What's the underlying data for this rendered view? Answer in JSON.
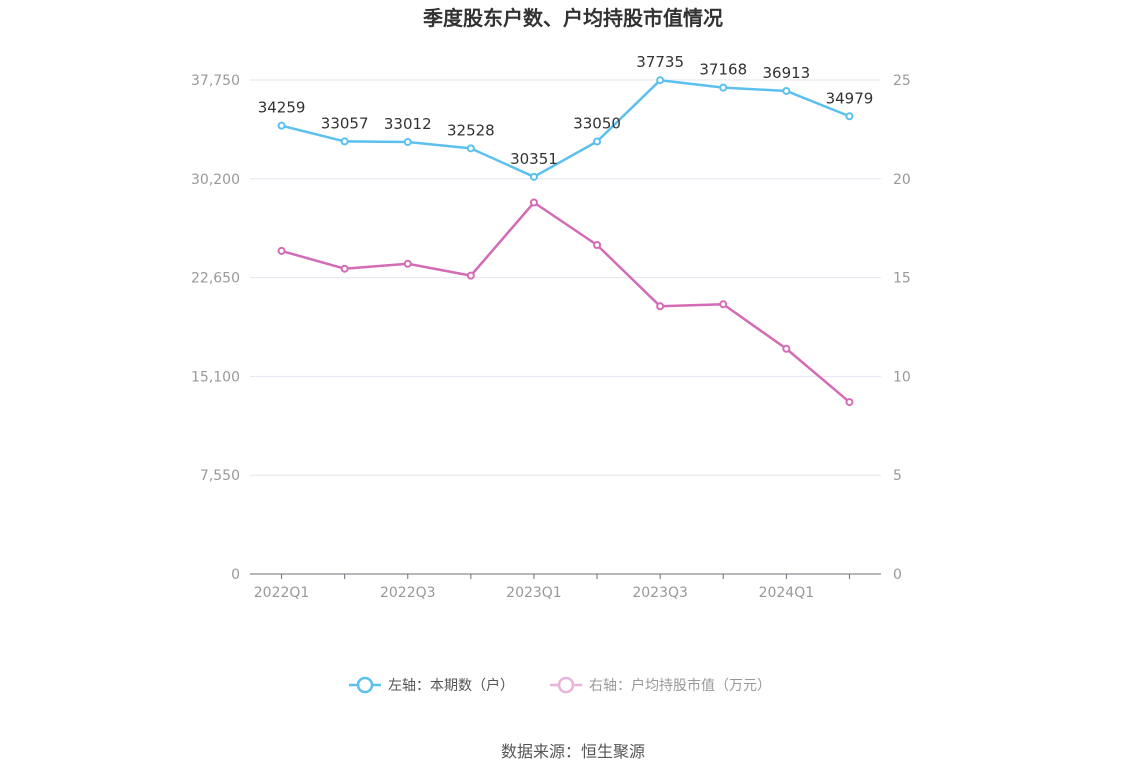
{
  "chart_data": {
    "type": "line",
    "title": "季度股东户数、户均持股市值情况",
    "categories": [
      "2022Q1",
      "2022Q2",
      "2022Q3",
      "2022Q4",
      "2023Q1",
      "2023Q2",
      "2023Q3",
      "2023Q4",
      "2024Q1",
      "2024Q2"
    ],
    "x_tick_labels": [
      "2022Q1",
      "2022Q3",
      "2023Q1",
      "2023Q3",
      "2024Q1"
    ],
    "left_axis": {
      "ylim": [
        0,
        37750
      ],
      "ticks": [
        "0",
        "7,550",
        "15,100",
        "22,650",
        "30,200",
        "37,750"
      ]
    },
    "right_axis": {
      "ylim": [
        0,
        25
      ],
      "ticks": [
        "0",
        "5",
        "10",
        "15",
        "20",
        "25"
      ]
    },
    "grid": true,
    "legend_position": "bottom",
    "series": [
      {
        "name": "左轴：本期数（户）",
        "axis": "left",
        "color": "#5bc0f0",
        "values": [
          34259,
          33057,
          33012,
          32528,
          30351,
          33050,
          37735,
          37168,
          36913,
          34979
        ],
        "labels": [
          "34259",
          "33057",
          "33012",
          "32528",
          "30351",
          "33050",
          "37735",
          "37168",
          "36913",
          "34979"
        ]
      },
      {
        "name": "右轴：户均持股市值（万元）",
        "axis": "right",
        "color": "#d36bb6",
        "values": [
          16.35,
          15.45,
          15.7,
          15.1,
          18.8,
          16.65,
          13.55,
          13.65,
          11.4,
          8.7
        ]
      }
    ]
  },
  "source": "数据来源：恒生聚源"
}
